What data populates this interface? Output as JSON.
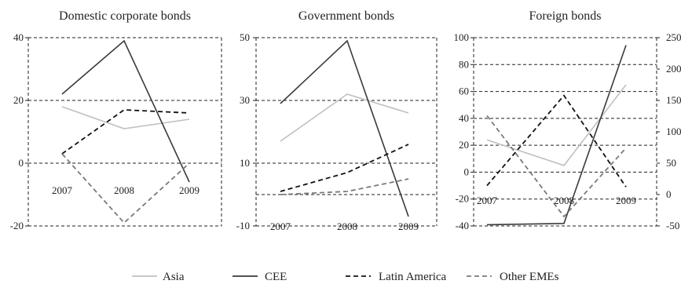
{
  "chart_data": [
    {
      "type": "line",
      "title": "Domestic corporate bonds",
      "xlabel": "",
      "ylabel": "",
      "categories": [
        "2007",
        "2008",
        "2009"
      ],
      "yticks": [
        -20,
        0,
        20,
        40
      ],
      "ylim": [
        -20,
        40
      ],
      "grid": true,
      "series": [
        {
          "name": "Asia",
          "values": [
            18,
            11,
            14
          ]
        },
        {
          "name": "CEE",
          "values": [
            22,
            39,
            -6
          ]
        },
        {
          "name": "Latin America",
          "values": [
            3,
            17,
            16
          ]
        },
        {
          "name": "Other EMEs",
          "values": [
            3,
            -19,
            0
          ]
        }
      ]
    },
    {
      "type": "line",
      "title": "Government bonds",
      "xlabel": "",
      "ylabel": "",
      "categories": [
        "2007",
        "2008",
        "2009"
      ],
      "yticks": [
        -10,
        10,
        30,
        50
      ],
      "ylim": [
        -10,
        50
      ],
      "baseline": 0,
      "grid": true,
      "series": [
        {
          "name": "Asia",
          "values": [
            17,
            32,
            26
          ]
        },
        {
          "name": "CEE",
          "values": [
            29,
            49,
            -7
          ]
        },
        {
          "name": "Latin America",
          "values": [
            1,
            7,
            16
          ]
        },
        {
          "name": "Other EMEs",
          "values": [
            0,
            1,
            5
          ]
        }
      ]
    },
    {
      "type": "line",
      "title": "Foreign bonds",
      "xlabel": "",
      "ylabel": "",
      "categories": [
        "2007",
        "2008",
        "2009"
      ],
      "yticks": [
        -40,
        -20,
        0,
        20,
        40,
        60,
        80,
        100
      ],
      "ylim": [
        -40,
        100
      ],
      "y2ticks": [
        -50,
        0,
        50,
        100,
        150,
        200,
        250
      ],
      "y2lim": [
        -50,
        250
      ],
      "grid": true,
      "series": [
        {
          "name": "Asia",
          "axis": "left",
          "values": [
            24,
            5,
            65
          ]
        },
        {
          "name": "CEE",
          "axis": "right",
          "values": [
            -48,
            -46,
            238
          ]
        },
        {
          "name": "Latin America",
          "axis": "left",
          "values": [
            -10,
            57,
            -11
          ]
        },
        {
          "name": "Other EMEs",
          "axis": "left",
          "values": [
            42,
            -33,
            18
          ]
        }
      ]
    }
  ],
  "legend": {
    "placement": "bottom",
    "entries": [
      {
        "name": "Asia",
        "color": "#c0c0c0",
        "dash": "solid"
      },
      {
        "name": "CEE",
        "color": "#3a3a3a",
        "dash": "solid"
      },
      {
        "name": "Latin America",
        "color": "#111111",
        "dash": "dashed"
      },
      {
        "name": "Other EMEs",
        "color": "#7a7a7a",
        "dash": "dashed"
      }
    ]
  },
  "series_colors": {
    "Asia": "#c0c0c0",
    "CEE": "#3a3a3a",
    "Latin America": "#111111",
    "Other EMEs": "#7a7a7a"
  }
}
